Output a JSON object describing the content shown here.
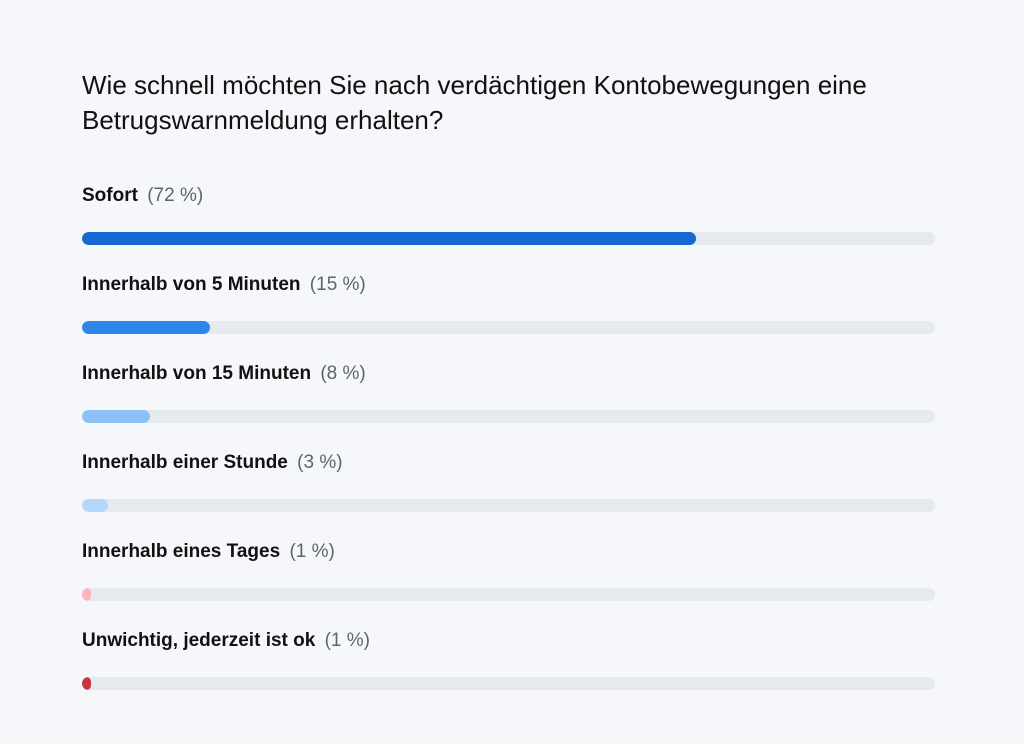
{
  "title": "Wie schnell möchten Sie nach verdächtigen Kontobewegungen eine Betrugswarnmeldung erhalten?",
  "chart_data": {
    "type": "bar",
    "orientation": "horizontal",
    "title": "Wie schnell möchten Sie nach verdächtigen Kontobewegungen eine Betrugswarnmeldung erhalten?",
    "xlim": [
      0,
      100
    ],
    "unit": "%",
    "categories": [
      "Sofort",
      "Innerhalb von 5 Minuten",
      "Innerhalb von 15 Minuten",
      "Innerhalb einer Stunde",
      "Innerhalb eines Tages",
      "Unwichtig, jederzeit ist ok"
    ],
    "values": [
      72,
      15,
      8,
      3,
      1,
      1
    ],
    "value_labels": [
      "(72 %)",
      "(15 %)",
      "(8 %)",
      "(3 %)",
      "(1 %)",
      "(1 %)"
    ],
    "colors": [
      "#1667d1",
      "#2f86ea",
      "#8bc1f7",
      "#b3d6fa",
      "#f9b6bb",
      "#c7363f"
    ],
    "track_color": "#e6eaef"
  }
}
